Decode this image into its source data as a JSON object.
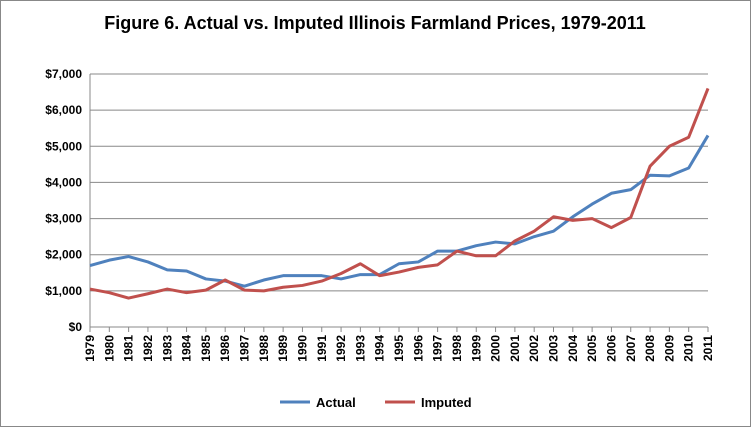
{
  "chart_data": {
    "type": "line",
    "title": "Figure 6. Actual vs. Imputed Illinois Farmland Prices, 1979-2011",
    "categories": [
      "1979",
      "1980",
      "1981",
      "1982",
      "1983",
      "1984",
      "1985",
      "1986",
      "1987",
      "1988",
      "1989",
      "1990",
      "1991",
      "1992",
      "1993",
      "1994",
      "1995",
      "1996",
      "1997",
      "1998",
      "1999",
      "2000",
      "2001",
      "2002",
      "2003",
      "2004",
      "2005",
      "2006",
      "2007",
      "2008",
      "2009",
      "2010",
      "2011"
    ],
    "series": [
      {
        "name": "Actual",
        "color": "#4f81bd",
        "values": [
          1700,
          1850,
          1950,
          1800,
          1580,
          1550,
          1330,
          1270,
          1130,
          1300,
          1420,
          1420,
          1420,
          1330,
          1450,
          1450,
          1750,
          1800,
          2100,
          2100,
          2250,
          2350,
          2300,
          2500,
          2650,
          3050,
          3400,
          3700,
          3800,
          4200,
          4180,
          4400,
          5300
        ]
      },
      {
        "name": "Imputed",
        "color": "#c0504d",
        "values": [
          1050,
          950,
          800,
          920,
          1050,
          950,
          1020,
          1300,
          1020,
          1000,
          1100,
          1150,
          1270,
          1480,
          1750,
          1420,
          1520,
          1650,
          1720,
          2100,
          1970,
          1970,
          2380,
          2650,
          3050,
          2950,
          3000,
          2750,
          3030,
          4450,
          5000,
          5250,
          6600
        ]
      }
    ],
    "ylim": [
      0,
      7000
    ],
    "yticks": [
      {
        "value": 0,
        "label": "$0"
      },
      {
        "value": 1000,
        "label": "$1,000"
      },
      {
        "value": 2000,
        "label": "$2,000"
      },
      {
        "value": 3000,
        "label": "$3,000"
      },
      {
        "value": 4000,
        "label": "$4,000"
      },
      {
        "value": 5000,
        "label": "$5,000"
      },
      {
        "value": 6000,
        "label": "$6,000"
      },
      {
        "value": 7000,
        "label": "$7,000"
      }
    ],
    "grid": true,
    "legend": "bottom"
  }
}
